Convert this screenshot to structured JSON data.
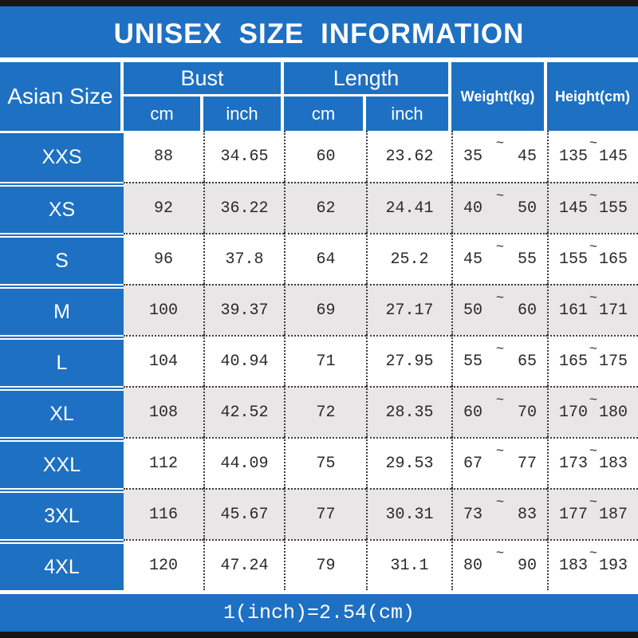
{
  "title": "UNISEX SIZE INFORMATION",
  "footer_note": "1(inch)=2.54(cm)",
  "colors": {
    "header_blue": "#1e70c2",
    "alt_row_gray": "#e8e6e7",
    "frame_bar_black": "#161616",
    "text_white": "#ffffff",
    "number_text": "#2a2a2a"
  },
  "chart_data": {
    "type": "table",
    "title": "UNISEX SIZE INFORMATION",
    "note": "1(inch)=2.54(cm)",
    "range_separator": "~",
    "column_groups": [
      {
        "label": "Asian Size",
        "span": 1
      },
      {
        "label": "Bust",
        "span": 2
      },
      {
        "label": "Length",
        "span": 2
      },
      {
        "label": "Weight(kg)",
        "span": 1
      },
      {
        "label": "Height(cm)",
        "span": 1
      }
    ],
    "subheaders": [
      "cm",
      "inch",
      "cm",
      "inch"
    ],
    "rows": [
      {
        "size": "XXS",
        "bust_cm": 88,
        "bust_inch": 34.65,
        "length_cm": 60,
        "length_inch": 23.62,
        "weight_kg": [
          35,
          45
        ],
        "height_cm": [
          135,
          145
        ]
      },
      {
        "size": "XS",
        "bust_cm": 92,
        "bust_inch": 36.22,
        "length_cm": 62,
        "length_inch": 24.41,
        "weight_kg": [
          40,
          50
        ],
        "height_cm": [
          145,
          155
        ]
      },
      {
        "size": "S",
        "bust_cm": 96,
        "bust_inch": 37.8,
        "length_cm": 64,
        "length_inch": 25.2,
        "weight_kg": [
          45,
          55
        ],
        "height_cm": [
          155,
          165
        ]
      },
      {
        "size": "M",
        "bust_cm": 100,
        "bust_inch": 39.37,
        "length_cm": 69,
        "length_inch": 27.17,
        "weight_kg": [
          50,
          60
        ],
        "height_cm": [
          161,
          171
        ]
      },
      {
        "size": "L",
        "bust_cm": 104,
        "bust_inch": 40.94,
        "length_cm": 71,
        "length_inch": 27.95,
        "weight_kg": [
          55,
          65
        ],
        "height_cm": [
          165,
          175
        ]
      },
      {
        "size": "XL",
        "bust_cm": 108,
        "bust_inch": 42.52,
        "length_cm": 72,
        "length_inch": 28.35,
        "weight_kg": [
          60,
          70
        ],
        "height_cm": [
          170,
          180
        ]
      },
      {
        "size": "XXL",
        "bust_cm": 112,
        "bust_inch": 44.09,
        "length_cm": 75,
        "length_inch": 29.53,
        "weight_kg": [
          67,
          77
        ],
        "height_cm": [
          173,
          183
        ]
      },
      {
        "size": "3XL",
        "bust_cm": 116,
        "bust_inch": 45.67,
        "length_cm": 77,
        "length_inch": 30.31,
        "weight_kg": [
          73,
          83
        ],
        "height_cm": [
          177,
          187
        ]
      },
      {
        "size": "4XL",
        "bust_cm": 120,
        "bust_inch": 47.24,
        "length_cm": 79,
        "length_inch": 31.1,
        "weight_kg": [
          80,
          90
        ],
        "height_cm": [
          183,
          193
        ]
      }
    ]
  }
}
